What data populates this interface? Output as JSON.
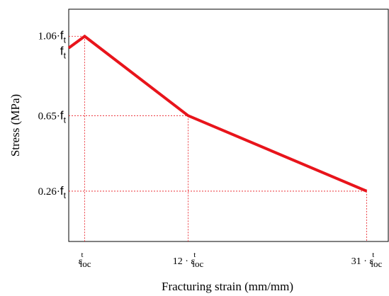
{
  "chart_data": {
    "type": "line",
    "xlabel": "Fracturing strain (mm/mm)",
    "ylabel": "Stress (MPa)",
    "x_axis_note": "x positions expressed in multiples of ε_loc^t",
    "y_axis_note": "y values expressed in multiples of f_t",
    "xlim": [
      -0.7,
      33.3
    ],
    "ylim": [
      0.0,
      1.2
    ],
    "series": [
      {
        "x": [
          -0.7,
          1,
          12,
          31
        ],
        "y": [
          1.0,
          1.06,
          0.65,
          0.26
        ]
      }
    ],
    "x_ticks": [
      {
        "value": 1,
        "prefix": "",
        "base": "ε",
        "sup": "t",
        "sub": "loc"
      },
      {
        "value": 12,
        "prefix": "12 · ",
        "base": "ε",
        "sup": "t",
        "sub": "loc"
      },
      {
        "value": 31,
        "prefix": "31 · ",
        "base": "ε",
        "sup": "t",
        "sub": "loc"
      }
    ],
    "y_ticks": [
      {
        "value": 1.06,
        "coef": "1.06·",
        "base": "f",
        "sub": "t"
      },
      {
        "value": 1.0,
        "coef": "",
        "base": "f",
        "sub": "t"
      },
      {
        "value": 0.65,
        "coef": "0.65·",
        "base": "f",
        "sub": "t"
      },
      {
        "value": 0.26,
        "coef": "0.26·",
        "base": "f",
        "sub": "t"
      }
    ],
    "colors": {
      "line": "#e8141b",
      "guide": "#e8141b",
      "axis": "#000000"
    }
  }
}
